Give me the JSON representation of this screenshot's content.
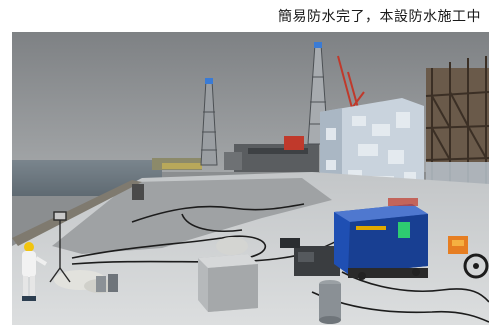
{
  "caption": {
    "text": "簡易防水完了，本設防水施工中"
  },
  "photo": {
    "subject": "construction-site-rooftop",
    "colors": {
      "sky": "#8a8c8f",
      "roof": "#c9cbcc",
      "waterproofing": "#b8babb",
      "machine": "#1f4fb3",
      "sea": "#6f7a83"
    }
  }
}
